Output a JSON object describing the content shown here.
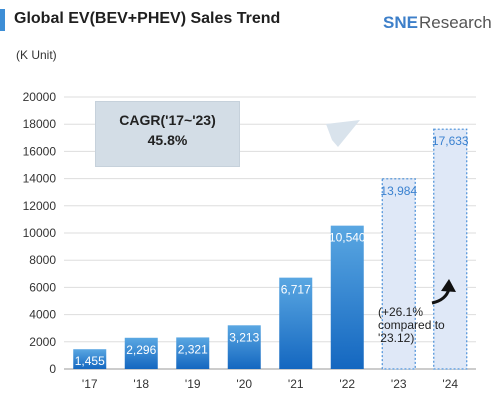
{
  "header": {
    "title": "Global EV(BEV+PHEV) Sales Trend",
    "logo_sne": "SNE",
    "logo_research": "Research"
  },
  "unit_label": "(K Unit)",
  "annotations": {
    "cagr_label": "CAGR('17~'23)",
    "cagr_value": "45.8%",
    "growth_note": "(+26.1% compared to '23.12)"
  },
  "colors": {
    "actual_bar_top": "#5aa7e2",
    "actual_bar_bottom": "#1467c0",
    "forecast_fill": "#dfe8f7",
    "forecast_border": "#4a90d9",
    "forecast_label": "#3b82d0",
    "arrow": "#d9e3ec",
    "gridline": "#dddddd"
  },
  "chart_data": {
    "type": "bar",
    "categories": [
      "'17",
      "'18",
      "'19",
      "'20",
      "'21",
      "'22",
      "'23",
      "'24"
    ],
    "values": [
      1455,
      2296,
      2321,
      3213,
      6717,
      10540,
      13984,
      17633
    ],
    "value_labels": [
      "1,455",
      "2,296",
      "2,321",
      "3,213",
      "6,717",
      "10,540",
      "13,984",
      "17,633"
    ],
    "forecast": [
      false,
      false,
      false,
      false,
      false,
      false,
      true,
      true
    ],
    "ylim": [
      0,
      20000
    ],
    "yticks": [
      0,
      2000,
      4000,
      6000,
      8000,
      10000,
      12000,
      14000,
      16000,
      18000,
      20000
    ],
    "ytick_labels": [
      "0",
      "2000",
      "4000",
      "6000",
      "8000",
      "10000",
      "12000",
      "14000",
      "16000",
      "18000",
      "20000"
    ],
    "grid": true,
    "title": "Global EV(BEV+PHEV) Sales Trend",
    "ylabel": "(K Unit)",
    "xlabel": ""
  }
}
